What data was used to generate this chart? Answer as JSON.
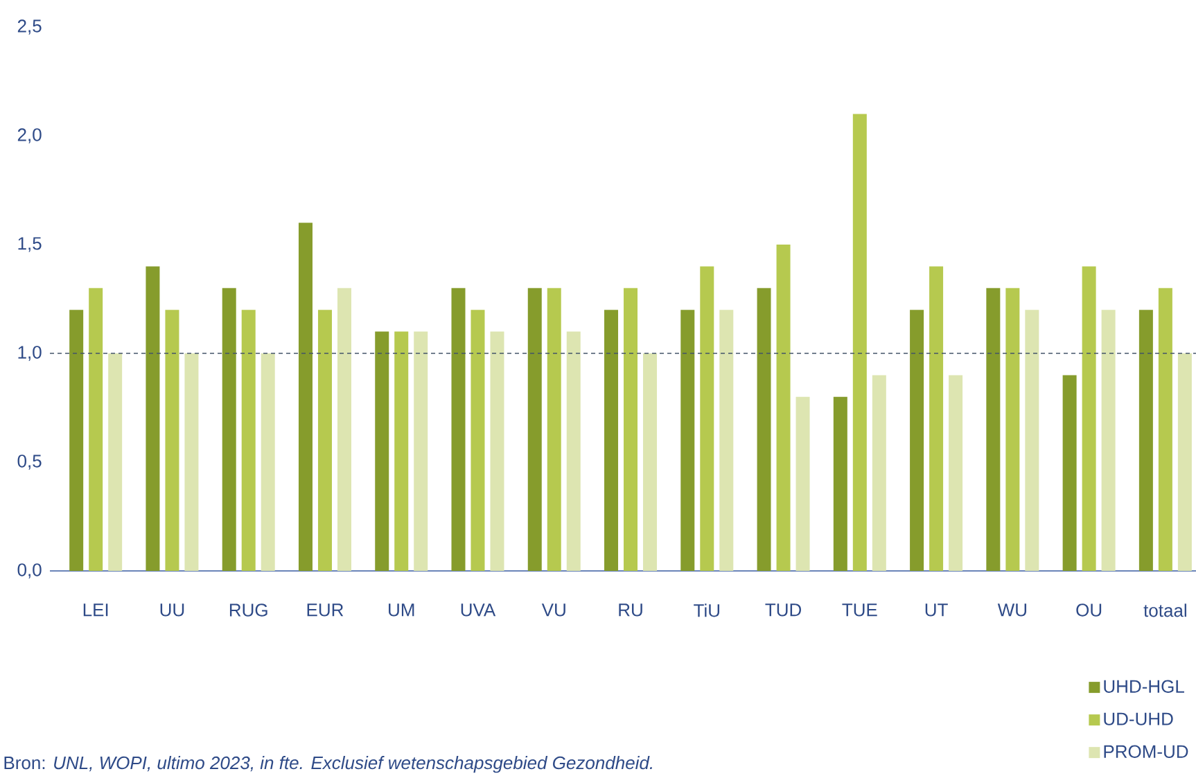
{
  "chart_data": {
    "type": "bar",
    "categories": [
      "LEI",
      "UU",
      "RUG",
      "EUR",
      "UM",
      "UVA",
      "VU",
      "RU",
      "TiU",
      "TUD",
      "TUE",
      "UT",
      "WU",
      "OU",
      "totaal"
    ],
    "series": [
      {
        "name": "UHD-HGL",
        "color": "#869c2c",
        "values": [
          1.2,
          1.4,
          1.3,
          1.6,
          1.1,
          1.3,
          1.3,
          1.2,
          1.2,
          1.3,
          0.8,
          1.2,
          1.3,
          0.9,
          1.2
        ]
      },
      {
        "name": "UD-UHD",
        "color": "#b6c94f",
        "values": [
          1.3,
          1.2,
          1.2,
          1.2,
          1.1,
          1.2,
          1.3,
          1.3,
          1.4,
          1.5,
          2.1,
          1.4,
          1.3,
          1.4,
          1.3
        ]
      },
      {
        "name": "PROM-UD",
        "color": "#dde5b1",
        "values": [
          1.0,
          1.0,
          1.0,
          1.3,
          1.1,
          1.1,
          1.1,
          1.0,
          1.2,
          0.8,
          0.9,
          0.9,
          1.2,
          1.2,
          1.0
        ]
      }
    ],
    "ylim": [
      0,
      2.5
    ],
    "yticks": [
      {
        "value": 0,
        "label": "0,0"
      },
      {
        "value": 0.5,
        "label": "0,5"
      },
      {
        "value": 1,
        "label": "1,0"
      },
      {
        "value": 1.5,
        "label": "1,5"
      },
      {
        "value": 2,
        "label": "2,0"
      },
      {
        "value": 2.5,
        "label": "2,5"
      }
    ],
    "ref_lines": [
      {
        "axis": "y",
        "value": 1,
        "color": "#44546a",
        "line_style": "dashed"
      }
    ],
    "legend": "bottom right",
    "annotations": [
      "Bron: *UNL, WOPI, ultimo 2023, in fte. Exclusief wetenschapsgebied Gezondheid.*"
    ]
  }
}
